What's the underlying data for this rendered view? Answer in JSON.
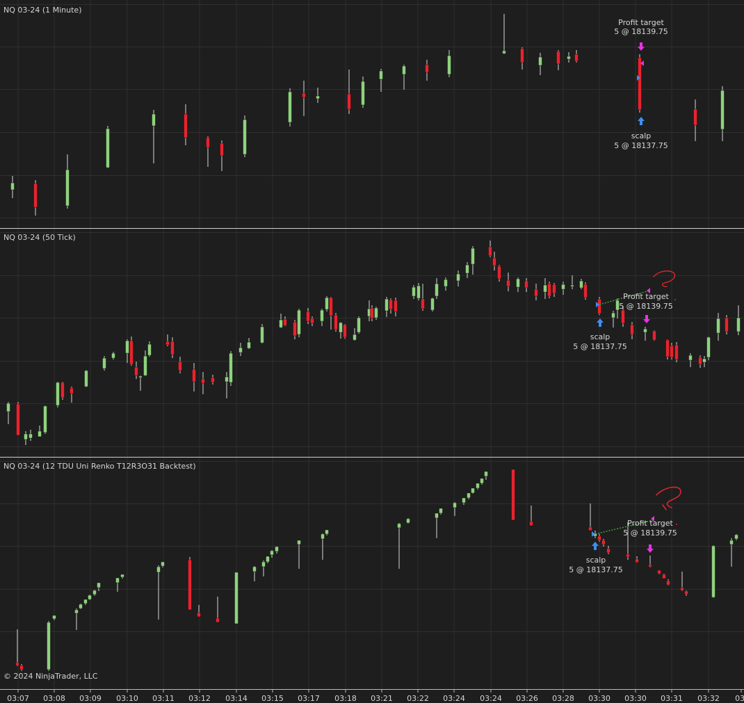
{
  "panels": [
    {
      "title": "NQ 03-24 (1 Minute)"
    },
    {
      "title": "NQ 03-24 (50 Tick)"
    },
    {
      "title": "NQ 03-24 (12 TDU Uni Renko T12R3O31 Backtest)"
    }
  ],
  "copyright": "© 2024 NinjaTrader, LLC",
  "time_axis": [
    "03:07",
    "03:08",
    "03:09",
    "03:10",
    "03:11",
    "03:12",
    "03:14",
    "03:15",
    "03:17",
    "03:18",
    "03:21",
    "03:22",
    "03:24",
    "03:24",
    "03:26",
    "03:28",
    "03:30",
    "03:30",
    "03:31",
    "03:32",
    "03:"
  ],
  "annotations": {
    "entry_label": "scalp",
    "entry_detail": "5 @ 18137.75",
    "exit_label": "Profit target",
    "exit_detail": "5 @ 18139.75",
    "question_mark": "?"
  },
  "colors": {
    "background": "#1e1e1e",
    "grid": "#2f2f2f",
    "up_candle": "#8fd27e",
    "down_candle": "#e8232e",
    "wick": "#d8d8d8",
    "entry_arrow": "#3f8ef0",
    "exit_arrow": "#e633e6",
    "trade_line": "#3aa63a",
    "annotation_red": "#d9262c"
  }
}
